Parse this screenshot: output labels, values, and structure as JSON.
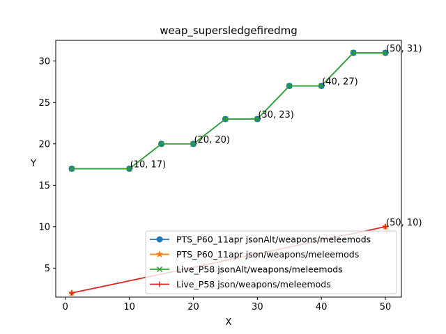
{
  "chart_data": {
    "type": "line",
    "title": "weap_supersledgefiredmg",
    "xlabel": "X",
    "ylabel": "Y",
    "xlim": [
      -1.5,
      52.5
    ],
    "ylim": [
      1.5,
      32.5
    ],
    "xticks": [
      0,
      10,
      20,
      30,
      40,
      50
    ],
    "yticks": [
      5,
      10,
      15,
      20,
      25,
      30
    ],
    "grid": false,
    "legend_position": "lower right",
    "series": [
      {
        "name": "PTS_P60_11apr jsonAlt/weapons/meleemods",
        "color": "#1f77b4",
        "marker": "circle",
        "x": [
          1,
          10,
          15,
          20,
          25,
          30,
          35,
          40,
          45,
          50
        ],
        "y": [
          17,
          17,
          20,
          20,
          23,
          23,
          27,
          27,
          31,
          31
        ]
      },
      {
        "name": "PTS_P60_11apr json/weapons/meleemods",
        "color": "#ff7f0e",
        "marker": "star",
        "x": [
          1,
          50
        ],
        "y": [
          2,
          10
        ]
      },
      {
        "name": "Live_P58 jsonAlt/weapons/meleemods",
        "color": "#2ca02c",
        "marker": "x",
        "x": [
          1,
          10,
          15,
          20,
          25,
          30,
          35,
          40,
          45,
          50
        ],
        "y": [
          17,
          17,
          20,
          20,
          23,
          23,
          27,
          27,
          31,
          31
        ]
      },
      {
        "name": "Live_P58 json/weapons/meleemods",
        "color": "#d62728",
        "marker": "plus",
        "x": [
          1,
          50
        ],
        "y": [
          2,
          10
        ]
      }
    ],
    "annotations": [
      {
        "text": "(10, 17)",
        "x": 10,
        "y": 17
      },
      {
        "text": "(20, 20)",
        "x": 20,
        "y": 20
      },
      {
        "text": "(30, 23)",
        "x": 30,
        "y": 23
      },
      {
        "text": "(40, 27)",
        "x": 40,
        "y": 27
      },
      {
        "text": "(50, 31)",
        "x": 50,
        "y": 31
      },
      {
        "text": "(50, 10)",
        "x": 50,
        "y": 10
      }
    ]
  }
}
